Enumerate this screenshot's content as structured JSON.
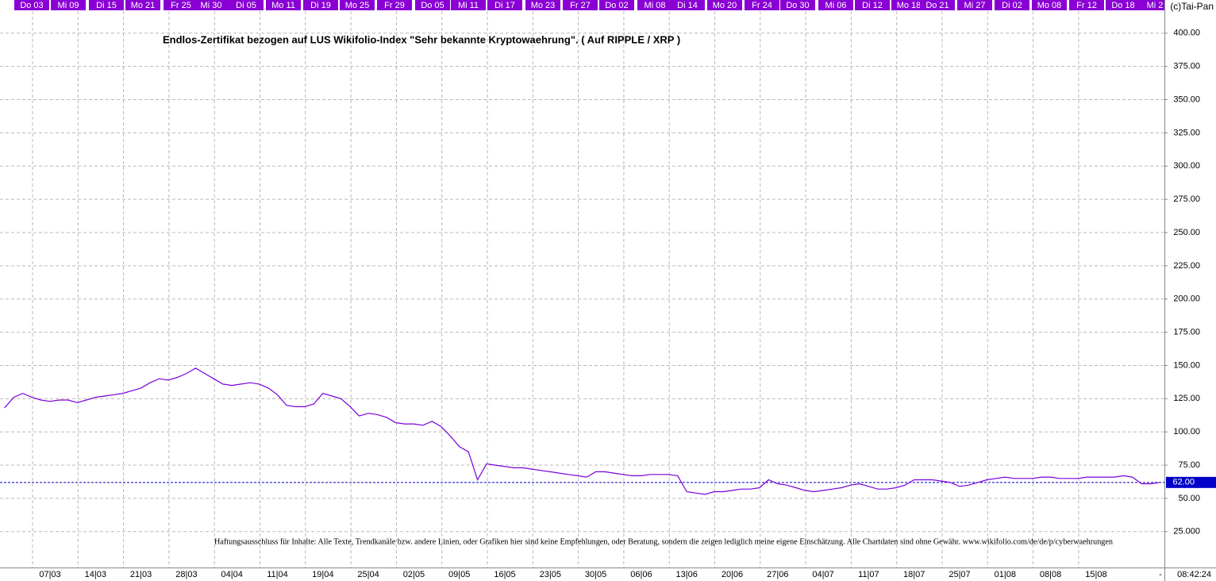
{
  "chart_data": {
    "type": "line",
    "title": "Endlos-Zertifikat bezogen auf LUS Wikifolio-Index \"Sehr bekannte Kryptowaehrung\". ( Auf RIPPLE / XRP )",
    "categories": [
      null,
      null,
      null,
      null,
      null,
      "07|03",
      null,
      null,
      null,
      null,
      "14|03",
      null,
      null,
      null,
      null,
      "21|03",
      null,
      null,
      null,
      null,
      "28|03",
      null,
      null,
      null,
      null,
      "04|04",
      null,
      null,
      null,
      null,
      "11|04",
      null,
      null,
      null,
      null,
      "19|04",
      null,
      null,
      null,
      null,
      "25|04",
      null,
      null,
      null,
      null,
      "02|05",
      null,
      null,
      null,
      null,
      "09|05",
      null,
      null,
      null,
      null,
      "16|05",
      null,
      null,
      null,
      null,
      "23|05",
      null,
      null,
      null,
      null,
      "30|05",
      null,
      null,
      null,
      null,
      "06|06",
      null,
      null,
      null,
      null,
      "13|06",
      null,
      null,
      null,
      null,
      "20|06",
      null,
      null,
      null,
      null,
      "27|06",
      null,
      null,
      null,
      null,
      "04|07",
      null,
      null,
      null,
      null,
      "11|07",
      null,
      null,
      null,
      null,
      "18|07",
      null,
      null,
      null,
      null,
      "25|07",
      null,
      null,
      null,
      null,
      "01|08",
      null,
      null,
      null,
      null,
      "08|08",
      null,
      null,
      null,
      null,
      "15|08",
      null,
      null,
      null,
      null,
      null,
      null,
      null
    ],
    "values": [
      118,
      126,
      129,
      126,
      124,
      123,
      124,
      124,
      122,
      124,
      126,
      127,
      128,
      129,
      131,
      133,
      137,
      140,
      139,
      141,
      144,
      148,
      144,
      140,
      136,
      135,
      136,
      137,
      136,
      133,
      128,
      120,
      119,
      119,
      121,
      129,
      127,
      125,
      119,
      112,
      114,
      113,
      111,
      107,
      106,
      106,
      105,
      108,
      104,
      97,
      89,
      85,
      64,
      76,
      75,
      74,
      73,
      73,
      72,
      71,
      70,
      69,
      68,
      67,
      66,
      70,
      70,
      69,
      68,
      67,
      67,
      68,
      68,
      68,
      67,
      55,
      54,
      53,
      55,
      55,
      56,
      57,
      57,
      58,
      64,
      61,
      60,
      58,
      56,
      55,
      56,
      57,
      58,
      60,
      61,
      59,
      57,
      57,
      58,
      60,
      64,
      64,
      64,
      63,
      62,
      59,
      60,
      62,
      64,
      65,
      66,
      65,
      65,
      65,
      66,
      66,
      65,
      65,
      65,
      66,
      66,
      66,
      66,
      67,
      66,
      61,
      61,
      62
    ],
    "color": "#7a00d8",
    "ylim": [
      -2,
      416
    ],
    "yticks": [
      {
        "value": 25,
        "label": "25.000"
      },
      {
        "value": 50,
        "label": "50.00"
      },
      {
        "value": 75,
        "label": "75.00"
      },
      {
        "value": 100,
        "label": "100.00"
      },
      {
        "value": 125,
        "label": "125.00"
      },
      {
        "value": 150,
        "label": "150.00"
      },
      {
        "value": 175,
        "label": "175.00"
      },
      {
        "value": 200,
        "label": "200.00"
      },
      {
        "value": 225,
        "label": "225.00"
      },
      {
        "value": 250,
        "label": "250.00"
      },
      {
        "value": 275,
        "label": "275.00"
      },
      {
        "value": 300,
        "label": "300.00"
      },
      {
        "value": 325,
        "label": "325.00"
      },
      {
        "value": 350,
        "label": "350.00"
      },
      {
        "value": 375,
        "label": "375.00"
      },
      {
        "value": 400,
        "label": "400.00"
      }
    ],
    "grid": true,
    "last_value": {
      "value": 62,
      "label": "62.00"
    },
    "reference_color": "#0000c8",
    "top_labels": [
      "Do 03",
      "Mi 09",
      "Di 15",
      "Mo 21",
      "Fr 25",
      "Mi 30",
      "Di 05",
      "Mo 11",
      "Di 19",
      "Mo 25",
      "Fr 29",
      "Do 05",
      "Mi 11",
      "Di 17",
      "Mo 23",
      "Fr 27",
      "Do 02",
      "Mi 08",
      "Di 14",
      "Mo 20",
      "Fr 24",
      "Do 30",
      "Mi 06",
      "Di 12",
      "Mo 18",
      "Do 21",
      "Mi 27",
      "Di 02",
      "Mo 08",
      "Fr 12",
      "Do 18",
      "Mi 2"
    ],
    "disclaimer": "Haftungsausschluss für Inhalte: Alle Texte, Trendkanäle bzw. andere Linien, oder Grafiken hier sind keine Empfehlungen, oder Beratung, sondern die zeigen lediglich meine eigene Einschätzung. Alle Chartdaten sind ohne Gewähr. www.wikifolio.com/de/de/p/cyberwaehrungen",
    "copyright": "(c)Tai-Pan",
    "time": "08:42:24",
    "axis_end_mark": "-"
  }
}
